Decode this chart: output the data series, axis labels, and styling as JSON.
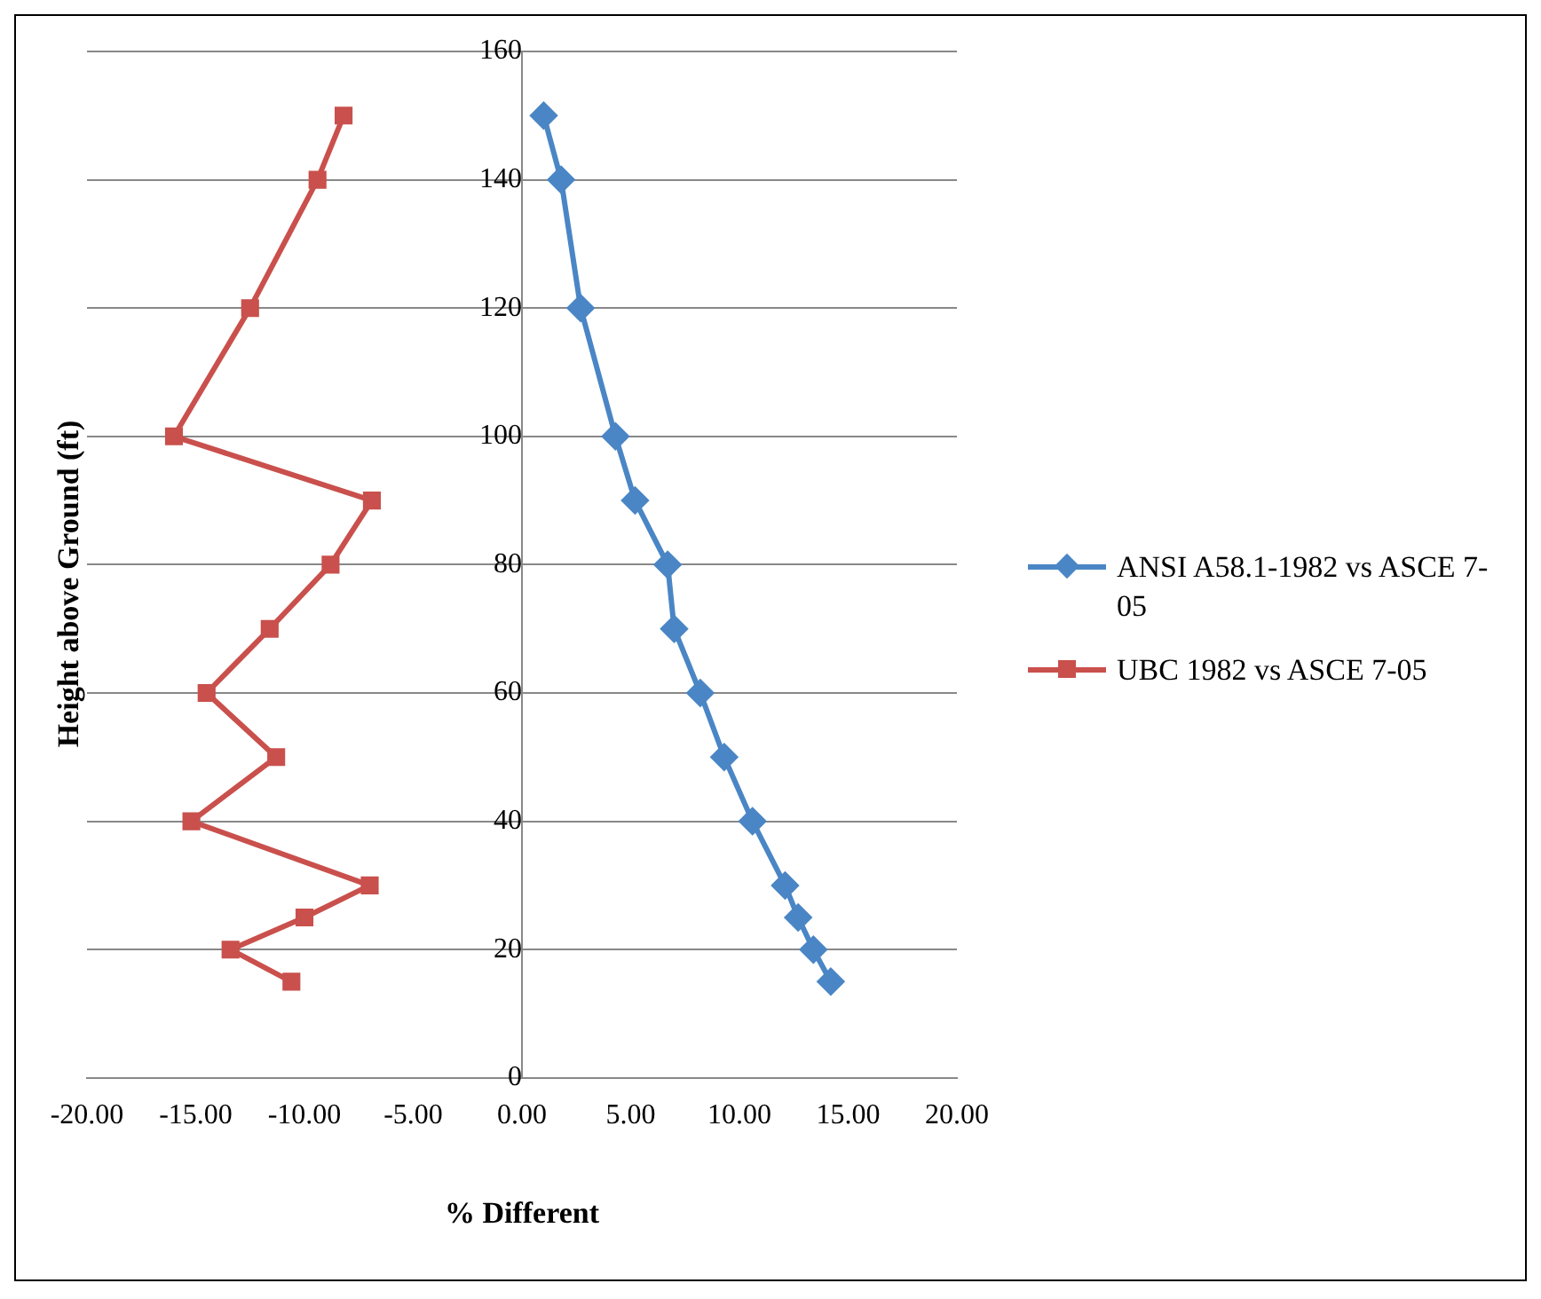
{
  "chart_data": {
    "type": "line",
    "xlabel": "% Different",
    "ylabel": "Height above Ground (ft)",
    "xlim": [
      -20,
      20
    ],
    "xticks": [
      {
        "value": -20,
        "label": "-20.00"
      },
      {
        "value": -15,
        "label": "-15.00"
      },
      {
        "value": -10,
        "label": "-10.00"
      },
      {
        "value": -5,
        "label": "-5.00"
      },
      {
        "value": 0,
        "label": "0.00"
      },
      {
        "value": 5,
        "label": "5.00"
      },
      {
        "value": 10,
        "label": "10.00"
      },
      {
        "value": 15,
        "label": "15.00"
      },
      {
        "value": 20,
        "label": "20.00"
      }
    ],
    "ylim": [
      0,
      160
    ],
    "yticks": [
      0,
      20,
      40,
      60,
      80,
      100,
      120,
      140,
      160
    ],
    "grid": "y",
    "legend": "right",
    "line_style": "solid",
    "series": [
      {
        "name": "ANSI A58.1-1982 vs ASCE 7-05",
        "color": "#4a86c5",
        "marker": "diamond",
        "x": [
          1.0,
          1.8,
          2.7,
          4.3,
          5.2,
          6.7,
          7.0,
          8.2,
          9.3,
          10.6,
          12.1,
          12.7,
          13.4,
          14.2
        ],
        "values": [
          150,
          140,
          120,
          100,
          90,
          80,
          70,
          60,
          50,
          40,
          30,
          25,
          20,
          15
        ]
      },
      {
        "name": "UBC 1982 vs ASCE 7-05",
        "color": "#c9504c",
        "marker": "square",
        "x": [
          -8.2,
          -9.4,
          -12.5,
          -16.0,
          -6.9,
          -8.8,
          -11.6,
          -14.5,
          -11.3,
          -15.2,
          -7.0,
          -10.0,
          -13.4,
          -10.6
        ],
        "values": [
          150,
          140,
          120,
          100,
          90,
          80,
          70,
          60,
          50,
          40,
          30,
          25,
          20,
          15
        ]
      }
    ]
  }
}
